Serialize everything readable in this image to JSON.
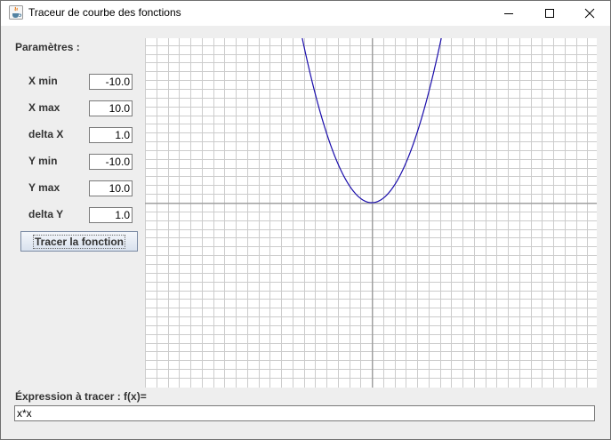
{
  "window": {
    "title": "Traceur de courbe des fonctions",
    "icon": "java-cup-icon",
    "controls": [
      "minimize-icon",
      "maximize-icon",
      "close-icon"
    ]
  },
  "params": {
    "heading": "Paramètres :",
    "fields": [
      {
        "label": "X min",
        "value": "-10.0"
      },
      {
        "label": "X max",
        "value": "10.0"
      },
      {
        "label": "delta X",
        "value": "1.0"
      },
      {
        "label": "Y min",
        "value": "-10.0"
      },
      {
        "label": "Y max",
        "value": "10.0"
      },
      {
        "label": "delta Y",
        "value": "1.0"
      }
    ],
    "trace_button": "Tracer la fonction"
  },
  "expression": {
    "label": "Éxpression à tracer : f(x)=",
    "value": "x*x"
  },
  "chart_data": {
    "type": "line",
    "function": "x*x",
    "xlim": [
      -10,
      10
    ],
    "ylim": [
      -10,
      10
    ],
    "grid": true,
    "colors": {
      "curve": "#1a0dab",
      "grid": "#cccccc",
      "axes": "#a0a0a0"
    }
  }
}
